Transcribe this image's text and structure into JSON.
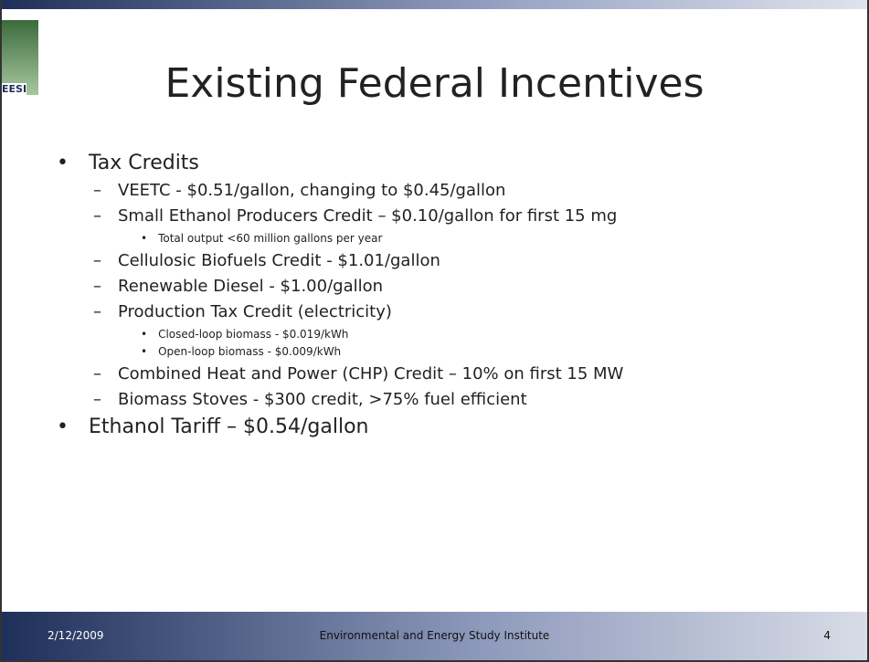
{
  "slide": {
    "logo": "EESI",
    "title": "Existing Federal Incentives",
    "bullets": [
      {
        "text": "Tax Credits",
        "items": [
          {
            "text": "VEETC - $0.51/gallon, changing to $0.45/gallon",
            "items": []
          },
          {
            "text": "Small Ethanol Producers Credit –  $0.10/gallon for first 15 mg",
            "items": [
              "Total output <60 million gallons per year"
            ]
          },
          {
            "text": "Cellulosic Biofuels Credit - $1.01/gallon",
            "items": []
          },
          {
            "text": "Renewable Diesel - $1.00/gallon",
            "items": []
          },
          {
            "text": "Production Tax Credit (electricity)",
            "items": [
              "Closed-loop biomass - $0.019/kWh",
              "Open-loop biomass - $0.009/kWh"
            ]
          },
          {
            "text": "Combined Heat and Power (CHP) Credit – 10% on first 15 MW",
            "items": []
          },
          {
            "text": "Biomass Stoves - $300 credit, >75% fuel efficient",
            "items": []
          }
        ]
      },
      {
        "text": "Ethanol Tariff – $0.54/gallon",
        "items": []
      }
    ],
    "footer": {
      "date": "2/12/2009",
      "org": "Environmental and Energy Study Institute",
      "page": "4"
    }
  }
}
